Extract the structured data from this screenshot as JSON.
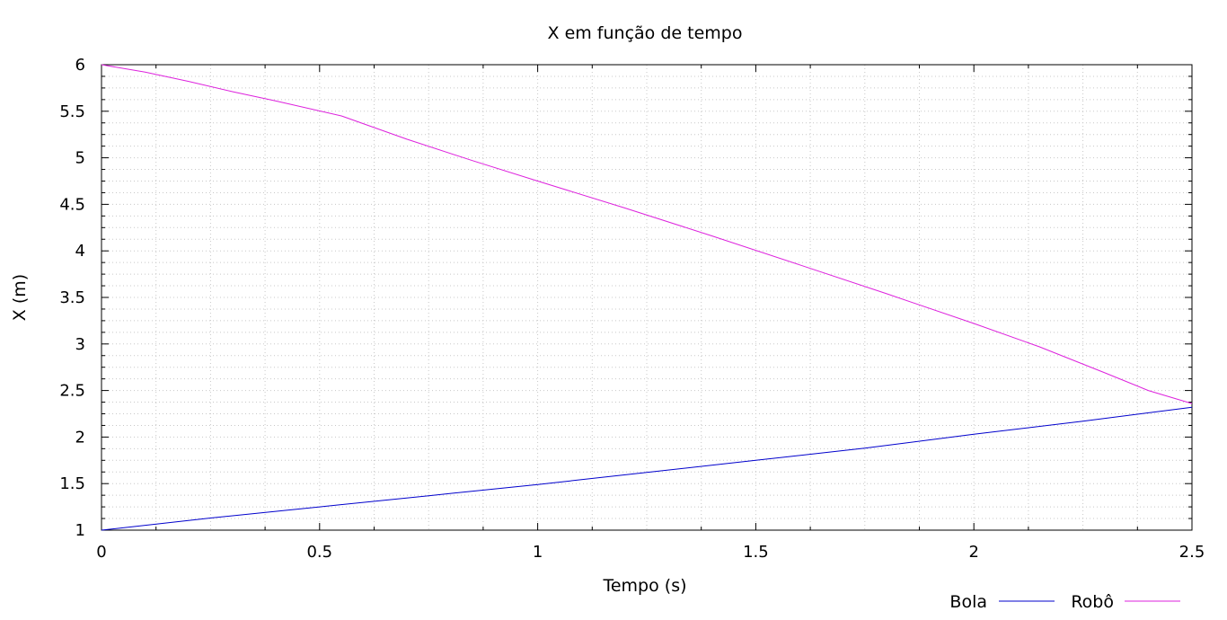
{
  "chart_data": {
    "type": "line",
    "title": "X em função de tempo",
    "xlabel": "Tempo (s)",
    "ylabel": "X (m)",
    "xlim": [
      0,
      2.5
    ],
    "ylim": [
      1,
      6
    ],
    "xticks": [
      "0",
      "0.5",
      "1",
      "1.5",
      "2",
      "2.5"
    ],
    "yticks": [
      "1",
      "1.5",
      "2",
      "2.5",
      "3",
      "3.5",
      "4",
      "4.5",
      "5",
      "5.5",
      "6"
    ],
    "grid": true,
    "legend_position": "bottom-right",
    "series": [
      {
        "name": "Bola",
        "color": "#0000cc",
        "x": [
          0,
          0.25,
          0.5,
          0.75,
          1.0,
          1.25,
          1.5,
          1.75,
          2.0,
          2.25,
          2.5
        ],
        "y": [
          1.0,
          1.13,
          1.25,
          1.37,
          1.49,
          1.62,
          1.75,
          1.88,
          2.03,
          2.17,
          2.32
        ]
      },
      {
        "name": "Robô",
        "color": "#dd22dd",
        "x": [
          0,
          0.1,
          0.2,
          0.3,
          0.4,
          0.55,
          0.7,
          0.85,
          1.0,
          1.2,
          1.4,
          1.6,
          1.8,
          2.0,
          2.15,
          2.3,
          2.4,
          2.5
        ],
        "y": [
          6.0,
          5.92,
          5.82,
          5.71,
          5.61,
          5.45,
          5.2,
          4.97,
          4.75,
          4.46,
          4.16,
          3.85,
          3.54,
          3.22,
          2.97,
          2.69,
          2.5,
          2.36
        ]
      }
    ]
  }
}
